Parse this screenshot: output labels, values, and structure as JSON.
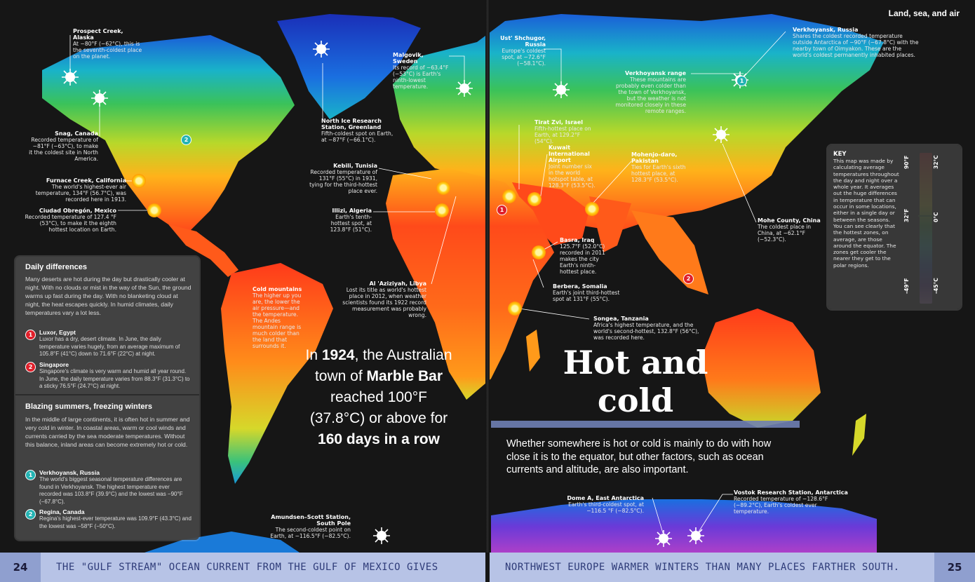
{
  "header": {
    "section": "Land, sea, and air"
  },
  "title": {
    "line1": "Hot and",
    "line2": "cold"
  },
  "intro": "Whether somewhere is hot or cold is mainly to do with how close it is to the equator, but other factors, such as ocean currents and altitude, are also important.",
  "marble_bar": {
    "pre": "In ",
    "year": "1924",
    "mid1": ", the Australian town of ",
    "town": "Marble Bar",
    "mid2": " reached 100°F (37.8°C) or above for ",
    "days": "160 days in a row"
  },
  "daily": {
    "heading": "Daily differences",
    "text": "Many deserts are hot during the day but drastically cooler at night. With no clouds or mist in the way of the Sun, the ground warms up fast during the day. With no blanketing cloud at night, the heat escapes quickly. In humid climates, daily temperatures vary a lot less.",
    "items": [
      {
        "num": "1",
        "title": "Luxor, Egypt",
        "text": "Luxor has a dry, desert climate. In June, the daily temperature varies hugely, from an average maximum of 105.8°F (41°C) down to 71.6°F (22°C) at night."
      },
      {
        "num": "2",
        "title": "Singapore",
        "text": "Singapore's climate is very warm and humid all year round. In June, the daily temperature varies from 88.3°F (31.3°C) to a sticky 76.5°F (24.7°C) at night."
      }
    ]
  },
  "blazing": {
    "heading": "Blazing summers, freezing winters",
    "text": "In the middle of large continents, it is often hot in summer and very cold in winter. In coastal areas, warm or cool winds and currents carried by the sea moderate temperatures. Without this balance, inland areas can become extremely hot or cold.",
    "items": [
      {
        "num": "1",
        "title": "Verkhoyansk, Russia",
        "text": "The world's biggest seasonal temperature differences are found in Verkhoyansk. The highest temperature ever recorded was 103.8°F (39.9°C) and the lowest was −90°F (−67.8°C)."
      },
      {
        "num": "2",
        "title": "Regina, Canada",
        "text": "Regina's highest-ever temperature was 109.9°F (43.3°C) and the lowest was −58°F (−50°C)."
      }
    ]
  },
  "key": {
    "heading": "KEY",
    "text": "This map was made by calculating average temperatures throughout the day and night over a whole year. It averages out the huge differences in temperature that can occur in some locations, either in a single day or between the seasons. You can see clearly that the hottest zones, on average, are those around the equator. The zones get cooler the nearer they get to the polar regions.",
    "f_top": "90°F",
    "f_mid": "32°F",
    "f_bot": "-49°F",
    "c_top": "32°C",
    "c_mid": "0°C",
    "c_bot": "-45°C"
  },
  "places": {
    "prospect": {
      "title": "Prospect Creek, Alaska",
      "text": "At −80°F (−62°C), this is the seventh-coldest place on the planet."
    },
    "snag": {
      "title": "Snag, Canada",
      "text": "Recorded temperature of −81°F (−63°C), to make it the coldest site in North America."
    },
    "furnace": {
      "title": "Furnace Creek, California",
      "text": "The world's highest-ever air temperature, 134°F (56.7°C), was recorded here in 1913."
    },
    "obregon": {
      "title": "Ciudad Obregón, Mexico",
      "text": "Recorded temperature of 127.4 °F (53°C), to make it the eighth hottest location on Earth."
    },
    "malgovik": {
      "title": "Malgovik, Sweden",
      "text": "Its record of −63.4°F (−53°C) is Earth's ninth-lowest temperature."
    },
    "northice": {
      "title": "North Ice Research Station, Greenland",
      "text": "Fifth-coldest spot on Earth, at −87°F (−66.1°C)."
    },
    "kebili": {
      "title": "Kebili, Tunisia",
      "text": "Recorded temperature of 131°F (55°C) in 1931, tying for the third-hottest place ever."
    },
    "illizi": {
      "title": "Illizi, Algeria",
      "text": "Earth's tenth-hottest spot, at 123.8°F (51°C)."
    },
    "aziziyah": {
      "title": "Al 'Aziziyah, Libya",
      "text": "Lost its title as world's hottest place in 2012, when weather scientists found its 1922 record measurement was probably wrong."
    },
    "coldmountains": {
      "title": "Cold mountains",
      "text": "The higher up you are, the lower the air pressure—and the temperature. The Andes mountain range is much colder than the land that surrounds it."
    },
    "amundsen": {
      "title": "Amundsen–Scott Station, South Pole",
      "text": "The second-coldest point on Earth, at −116.5°F (−82.5°C)."
    },
    "ustshchugor": {
      "title": "Ust' Shchugor, Russia",
      "text": "Europe's coldest spot, at −72.6°F (−58.1°C)."
    },
    "verkhoyansk": {
      "title": "Verkhoyansk, Russia",
      "text": "Shares the coldest recorded temperature outside Antarctica of −90°F (−67.8°C) with the nearby town of Oimyakon. These are the world's coldest permanently inhabited places."
    },
    "vrange": {
      "title": "Verkhoyansk range",
      "text": "These mountains are probably even colder than the town of Verkhoyansk, but the weather is not monitored closely in these remote ranges."
    },
    "tiratzvi": {
      "title": "Tirat Zvi, Israel",
      "text": "Fifth-hottest place on Earth, at 129.2°F (54°C)."
    },
    "kuwait": {
      "title": "Kuwait International Airport",
      "text": "Joint number six in the world hotspot table, at 128.3°F (53.5°C)."
    },
    "mohenjo": {
      "title": "Mohenjo-daro, Pakistan",
      "text": "Ties for Earth's sixth hottest place, at 128.3°F (53.5°C)."
    },
    "mohe": {
      "title": "Mohe County, China",
      "text": "The coldest place in China, at −62.1°F (−52.3°C)."
    },
    "basra": {
      "title": "Basra, Iraq",
      "text": "125.7°F (52.0°C) recorded in 2011 makes the city Earth's ninth-hottest place."
    },
    "berbera": {
      "title": "Berbera, Somalia",
      "text": "Earth's joint third-hottest spot at 131°F (55°C)."
    },
    "songea": {
      "title": "Songea, Tanzania",
      "text": "Africa's highest temperature, and the world's second-hottest, 132.8°F (56°C), was recorded here."
    },
    "domea": {
      "title": "Dome A, East Antarctica",
      "text": "Earth's third-coldest spot, at −116.5 °F (−82.5°C)."
    },
    "vostok": {
      "title": "Vostok Research Station, Antarctica",
      "text": "Recorded temperature of −128.6°F (−89.2°C), Earth's coldest ever temperature."
    }
  },
  "badges": {
    "one": "1",
    "two": "2"
  },
  "footer": {
    "left_page": "24",
    "right_page": "25",
    "left_text": "THE \"GULF STREAM\" OCEAN CURRENT FROM THE GULF OF MEXICO GIVES",
    "right_text": "NORTHWEST EUROPE WARMER WINTERS THAN MANY PLACES FARTHER SOUTH."
  },
  "colors": {
    "hot": "#ff2a1a",
    "warm": "#ff8c1a",
    "mild": "#8ad52b",
    "cool": "#1ec7a8",
    "cold": "#1a6fe0",
    "frozen": "#8a48c8",
    "footer": "#b7c3e6",
    "footer_text": "#2e3b78"
  }
}
